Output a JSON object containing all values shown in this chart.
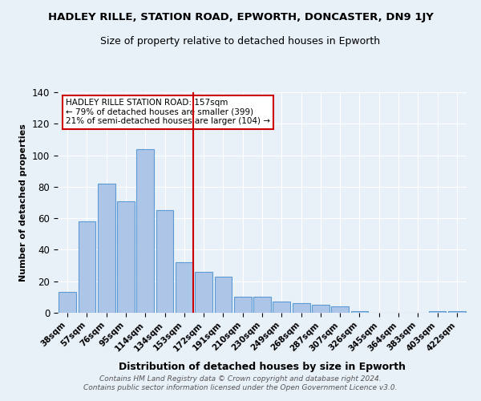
{
  "title": "HADLEY RILLE, STATION ROAD, EPWORTH, DONCASTER, DN9 1JY",
  "subtitle": "Size of property relative to detached houses in Epworth",
  "xlabel": "Distribution of detached houses by size in Epworth",
  "ylabel": "Number of detached properties",
  "categories": [
    "38sqm",
    "57sqm",
    "76sqm",
    "95sqm",
    "114sqm",
    "134sqm",
    "153sqm",
    "172sqm",
    "191sqm",
    "210sqm",
    "230sqm",
    "249sqm",
    "268sqm",
    "287sqm",
    "307sqm",
    "326sqm",
    "345sqm",
    "364sqm",
    "383sqm",
    "403sqm",
    "422sqm"
  ],
  "values": [
    13,
    58,
    82,
    71,
    104,
    65,
    32,
    26,
    23,
    10,
    10,
    7,
    6,
    5,
    4,
    1,
    0,
    0,
    0,
    1,
    1
  ],
  "bar_color": "#adc6e8",
  "bar_edge_color": "#5b9bd5",
  "vline_idx": 6,
  "vline_color": "#cc0000",
  "annotation_text": "HADLEY RILLE STATION ROAD: 157sqm\n← 79% of detached houses are smaller (399)\n21% of semi-detached houses are larger (104) →",
  "annotation_box_color": "#ffffff",
  "annotation_box_edge": "#cc0000",
  "footer1": "Contains HM Land Registry data © Crown copyright and database right 2024.",
  "footer2": "Contains public sector information licensed under the Open Government Licence v3.0.",
  "ylim": [
    0,
    140
  ],
  "background_color": "#e8f0f8",
  "title_fontsize": 9.5,
  "subtitle_fontsize": 9,
  "ylabel_fontsize": 8,
  "xlabel_fontsize": 9,
  "tick_fontsize": 7.5,
  "ytick_fontsize": 8.5,
  "footer_fontsize": 6.5,
  "annot_fontsize": 7.5
}
